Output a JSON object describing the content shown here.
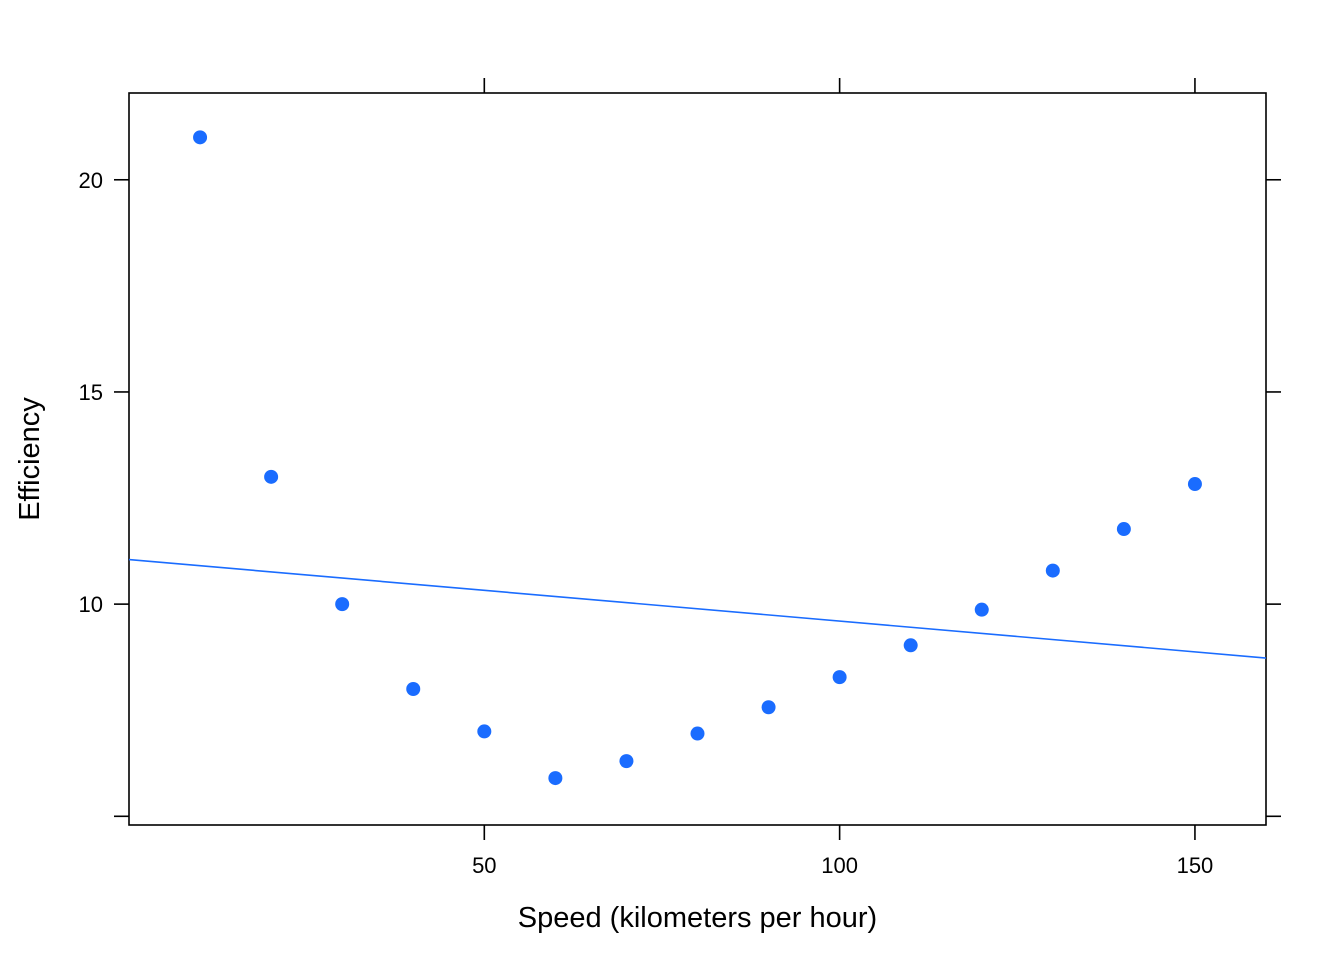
{
  "chart_data": {
    "type": "scatter",
    "title": "",
    "xlabel": "Speed (kilometers per hour)",
    "ylabel": "Efficiency",
    "xlim": [
      0,
      160
    ],
    "ylim": [
      5,
      22
    ],
    "x_ticks": [
      50,
      100,
      150
    ],
    "y_ticks": [
      5,
      10,
      15,
      20
    ],
    "x_tick_labels": [
      "50",
      "100",
      "150"
    ],
    "y_tick_labels": [
      "",
      "10",
      "15",
      "20"
    ],
    "grid": false,
    "legend": "none",
    "point_color": "#1a6cff",
    "series": [
      {
        "x": [
          10,
          20,
          30,
          40,
          50,
          60,
          70,
          80,
          90,
          100,
          110,
          120,
          130,
          140,
          150
        ],
        "y": [
          21.0,
          13.0,
          10.0,
          8.0,
          7.0,
          5.9,
          6.3,
          6.95,
          7.57,
          8.28,
          9.03,
          9.87,
          10.79,
          11.77,
          12.83
        ]
      }
    ],
    "fit_line": {
      "color": "#1a6cff",
      "x": [
        0,
        160
      ],
      "y": [
        11.05,
        8.73
      ]
    }
  }
}
